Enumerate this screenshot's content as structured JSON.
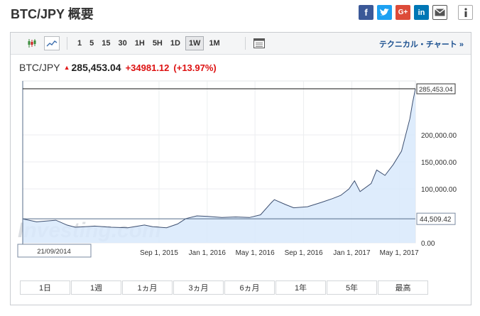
{
  "page": {
    "title": "BTC/JPY 概要"
  },
  "social_icons": [
    "facebook-icon",
    "twitter-icon",
    "google-plus-icon",
    "linkedin-icon",
    "mail-icon",
    "info-icon"
  ],
  "toolbar": {
    "chart_type_icons": [
      "candlestick-icon",
      "line-chart-icon"
    ],
    "intervals": [
      "1",
      "5",
      "15",
      "30",
      "1H",
      "5H",
      "1D",
      "1W",
      "1M"
    ],
    "active_interval": "1W",
    "tech_link": "テクニカル・チャート »"
  },
  "quote": {
    "symbol": "BTC/JPY",
    "price": "285,453.04",
    "change": "+34981.12",
    "change_pct": "(+13.97%)"
  },
  "colors": {
    "positive": "#d11111",
    "line": "#3d4f70",
    "fill": "#d8e9fb",
    "link": "#1a4f8f"
  },
  "chart_data": {
    "type": "area",
    "x_tick_labels": [
      "Sep 1, 2015",
      "Jan 1, 2016",
      "May 1, 2016",
      "Sep 1, 2016",
      "Jan 1, 2017",
      "May 1, 2017"
    ],
    "y_tick_labels": [
      "200,000.00",
      "150,000.00",
      "100,000.00",
      "0.00"
    ],
    "ylim": [
      0,
      300000
    ],
    "price_markers": {
      "last": "285,453.04",
      "crosshair": "44,509.42"
    },
    "crosshair_date": "21/09/2014",
    "watermark": "Investing.com",
    "grid": true,
    "series": [
      {
        "x": [
          "2014-09-21",
          "2014-10-26",
          "2014-12-14",
          "2015-01-11",
          "2015-02-01",
          "2015-03-22",
          "2015-05-03",
          "2015-06-14",
          "2015-07-26",
          "2015-08-16",
          "2015-09-20",
          "2015-10-18",
          "2015-11-08",
          "2015-12-06",
          "2016-01-03",
          "2016-02-07",
          "2016-03-13",
          "2016-04-17",
          "2016-05-15",
          "2016-06-12",
          "2016-06-19",
          "2016-07-17",
          "2016-08-07",
          "2016-09-11",
          "2016-10-16",
          "2016-11-13",
          "2016-12-04",
          "2016-12-25",
          "2017-01-08",
          "2017-01-22",
          "2017-02-19",
          "2017-03-05",
          "2017-03-26",
          "2017-04-16",
          "2017-05-07",
          "2017-05-28",
          "2017-06-04",
          "2017-06-11"
        ],
        "y": [
          44509,
          39000,
          42000,
          33000,
          29000,
          31000,
          29000,
          28000,
          33000,
          30000,
          28000,
          35000,
          45000,
          50000,
          49000,
          47000,
          48000,
          47000,
          52000,
          75000,
          80000,
          71000,
          65000,
          67000,
          75000,
          82000,
          88000,
          100000,
          115000,
          95000,
          110000,
          135000,
          125000,
          145000,
          170000,
          230000,
          260000,
          285453
        ]
      }
    ]
  },
  "range_buttons": [
    "1日",
    "1週",
    "1ヵ月",
    "3ヵ月",
    "6ヵ月",
    "1年",
    "5年",
    "最高"
  ]
}
